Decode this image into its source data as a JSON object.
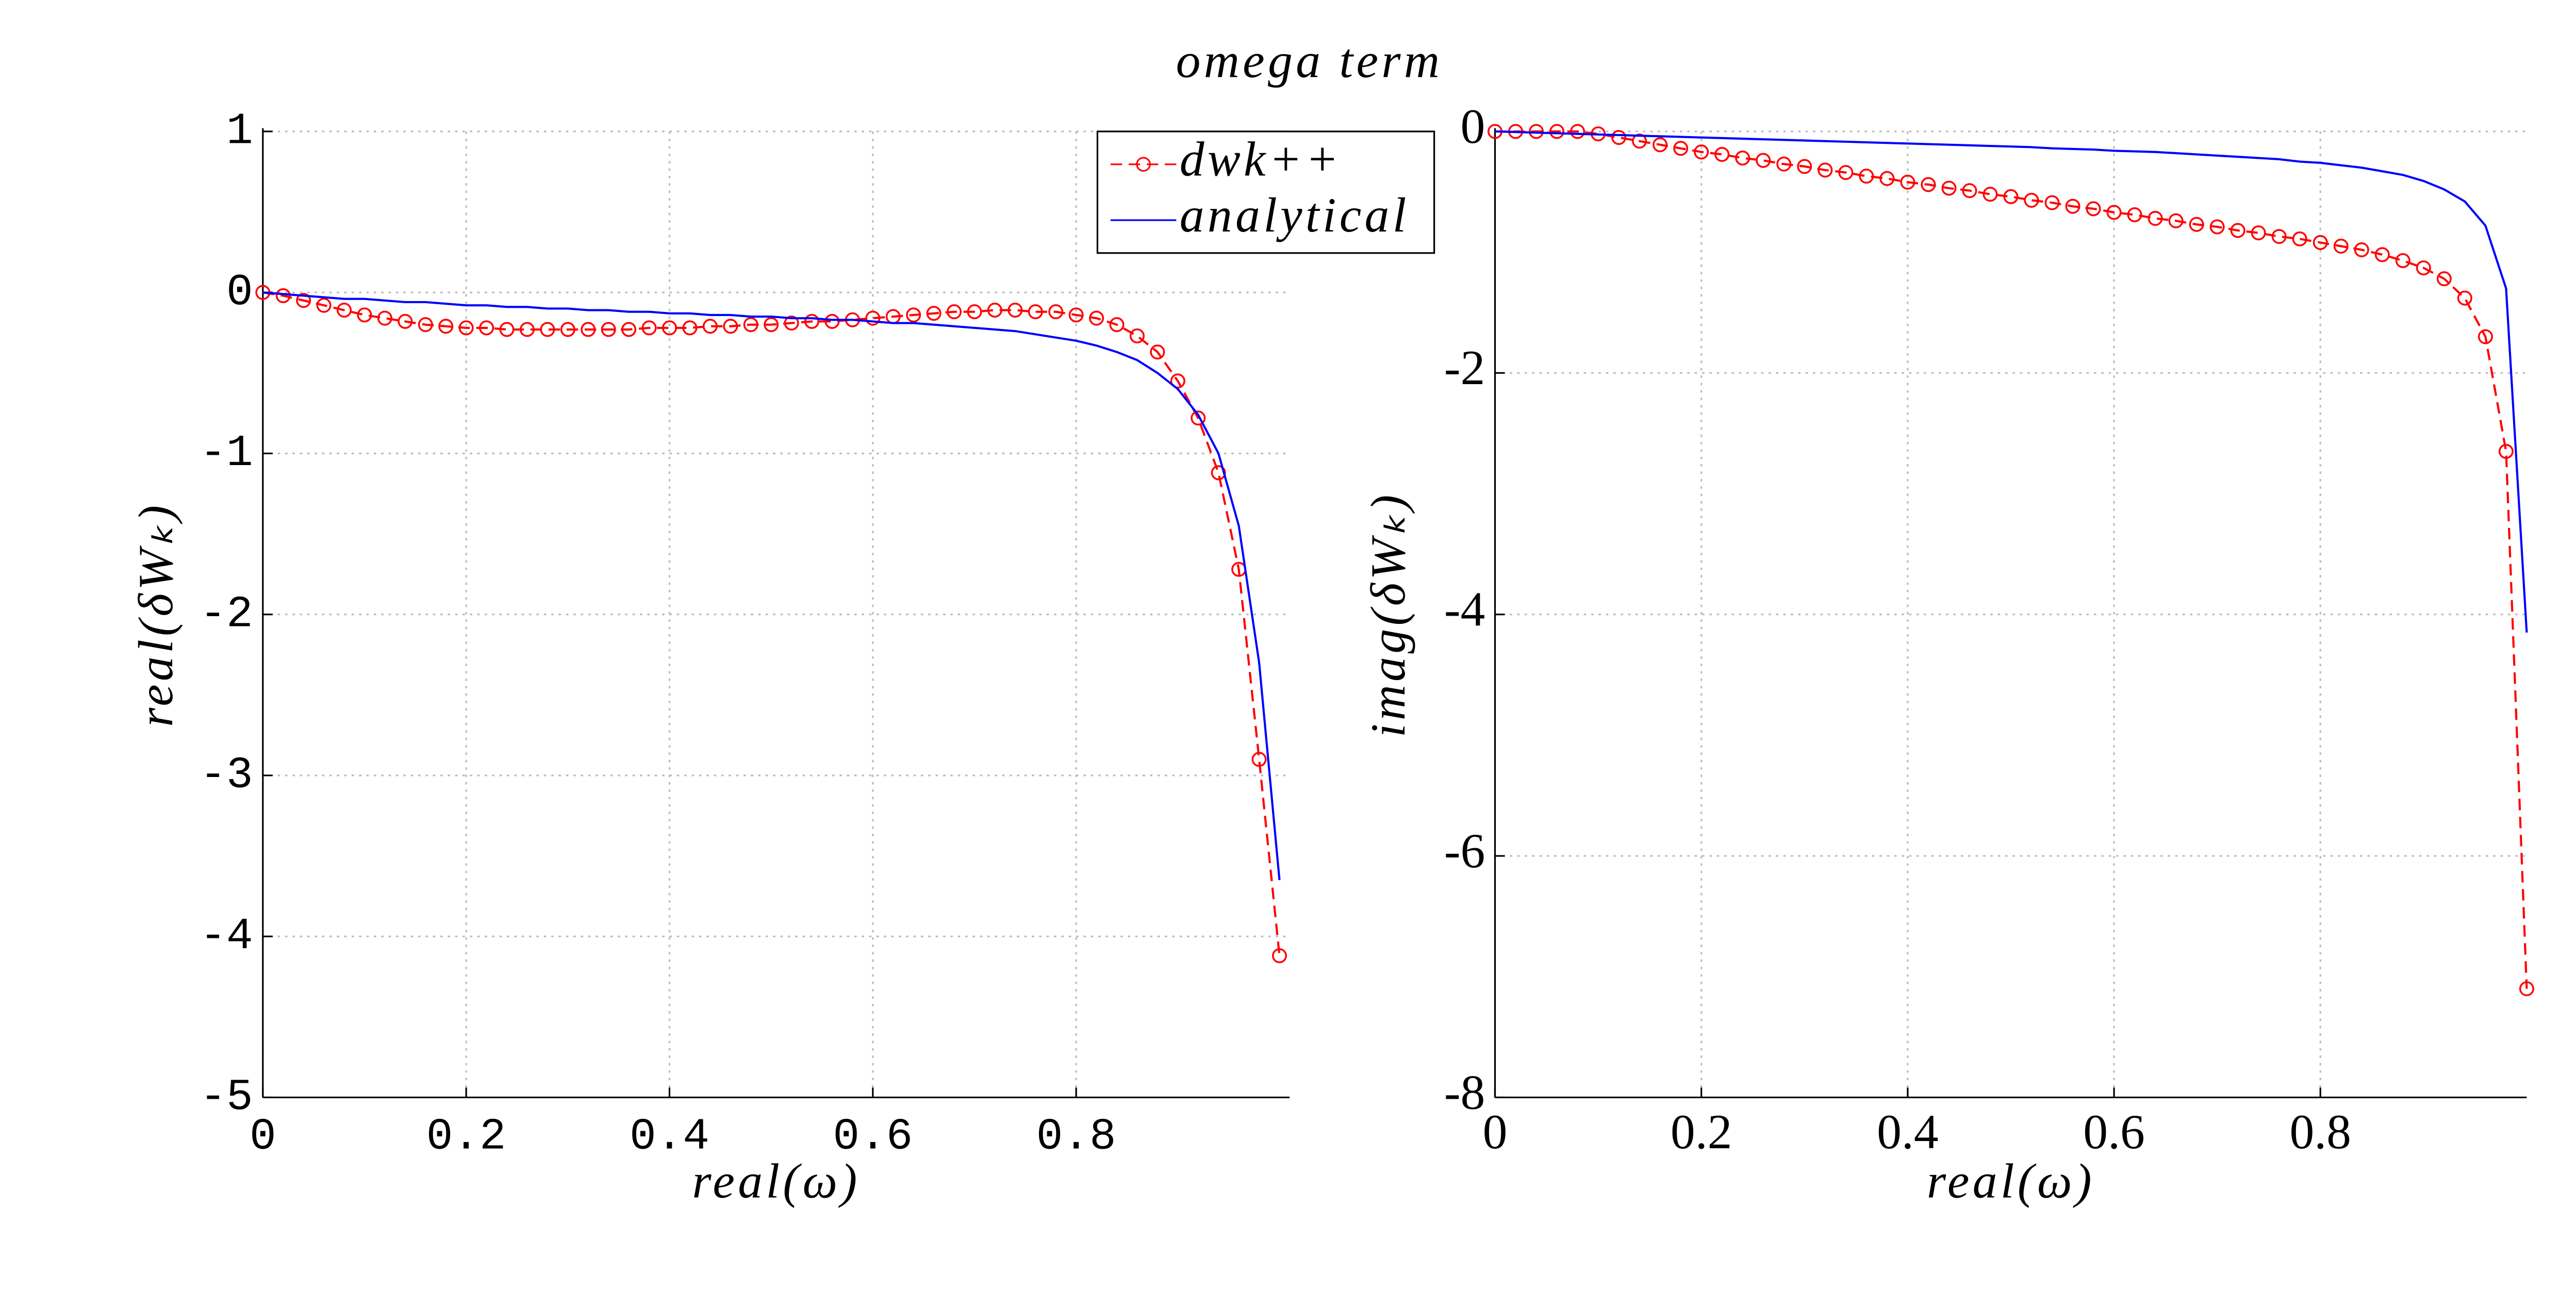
{
  "suptitle": "omega term",
  "chart_data": [
    {
      "type": "line",
      "x_label": "real(ω)",
      "y_label": "real(δWₖ)",
      "xlim": [
        0,
        1.01
      ],
      "xticks": [
        0,
        0.2,
        0.4,
        0.6,
        0.8
      ],
      "ylim": [
        -5,
        1
      ],
      "yticks": [
        -5,
        -4,
        -3,
        -2,
        -1,
        0,
        1
      ],
      "grid": true,
      "legend": "upper right",
      "x": [
        0,
        0.02,
        0.04,
        0.06,
        0.08,
        0.1,
        0.12,
        0.14,
        0.16,
        0.18,
        0.2,
        0.22,
        0.24,
        0.26,
        0.28,
        0.3,
        0.32,
        0.34,
        0.36,
        0.38,
        0.4,
        0.42,
        0.44,
        0.46,
        0.48,
        0.5,
        0.52,
        0.54,
        0.56,
        0.58,
        0.6,
        0.62,
        0.64,
        0.66,
        0.68,
        0.7,
        0.72,
        0.74,
        0.76,
        0.78,
        0.8,
        0.82,
        0.84,
        0.86,
        0.88,
        0.9,
        0.92,
        0.94,
        0.96,
        0.98,
        1.0
      ],
      "series": [
        {
          "name": "dwk++",
          "color": "#ff0000",
          "dashed": true,
          "marker": "circle",
          "values": [
            0,
            -0.02,
            -0.05,
            -0.08,
            -0.11,
            -0.14,
            -0.16,
            -0.18,
            -0.2,
            -0.21,
            -0.22,
            -0.22,
            -0.23,
            -0.23,
            -0.23,
            -0.23,
            -0.23,
            -0.23,
            -0.23,
            -0.22,
            -0.22,
            -0.22,
            -0.21,
            -0.21,
            -0.2,
            -0.2,
            -0.19,
            -0.18,
            -0.18,
            -0.17,
            -0.16,
            -0.15,
            -0.14,
            -0.13,
            -0.12,
            -0.12,
            -0.11,
            -0.11,
            -0.12,
            -0.12,
            -0.14,
            -0.16,
            -0.2,
            -0.27,
            -0.37,
            -0.55,
            -0.78,
            -1.12,
            -1.72,
            -2.9,
            -4.12
          ]
        },
        {
          "name": "analytical",
          "color": "#0000ff",
          "dashed": false,
          "values": [
            0,
            -0.01,
            -0.02,
            -0.03,
            -0.04,
            -0.04,
            -0.05,
            -0.06,
            -0.06,
            -0.07,
            -0.08,
            -0.08,
            -0.09,
            -0.09,
            -0.1,
            -0.1,
            -0.11,
            -0.11,
            -0.12,
            -0.12,
            -0.13,
            -0.13,
            -0.14,
            -0.14,
            -0.15,
            -0.15,
            -0.16,
            -0.16,
            -0.17,
            -0.17,
            -0.18,
            -0.19,
            -0.19,
            -0.2,
            -0.21,
            -0.22,
            -0.23,
            -0.24,
            -0.26,
            -0.28,
            -0.3,
            -0.33,
            -0.37,
            -0.42,
            -0.5,
            -0.6,
            -0.76,
            -1.0,
            -1.45,
            -2.3,
            -3.65
          ]
        }
      ]
    },
    {
      "type": "line",
      "x_label": "real(ω)",
      "y_label": "imag(δWₖ)",
      "xlim": [
        0,
        1.0
      ],
      "xticks": [
        0,
        0.2,
        0.4,
        0.6,
        0.8
      ],
      "ylim": [
        -8,
        0
      ],
      "yticks": [
        -8,
        -6,
        -4,
        -2,
        0
      ],
      "grid": true,
      "x": [
        0,
        0.02,
        0.04,
        0.06,
        0.08,
        0.1,
        0.12,
        0.14,
        0.16,
        0.18,
        0.2,
        0.22,
        0.24,
        0.26,
        0.28,
        0.3,
        0.32,
        0.34,
        0.36,
        0.38,
        0.4,
        0.42,
        0.44,
        0.46,
        0.48,
        0.5,
        0.52,
        0.54,
        0.56,
        0.58,
        0.6,
        0.62,
        0.64,
        0.66,
        0.68,
        0.7,
        0.72,
        0.74,
        0.76,
        0.78,
        0.8,
        0.82,
        0.84,
        0.86,
        0.88,
        0.9,
        0.92,
        0.94,
        0.96,
        0.98,
        1.0
      ],
      "series": [
        {
          "name": "dwk++",
          "color": "#ff0000",
          "dashed": true,
          "marker": "circle",
          "values": [
            0,
            0,
            0,
            0,
            0,
            -0.02,
            -0.05,
            -0.08,
            -0.11,
            -0.14,
            -0.17,
            -0.19,
            -0.22,
            -0.24,
            -0.27,
            -0.29,
            -0.32,
            -0.34,
            -0.37,
            -0.39,
            -0.42,
            -0.44,
            -0.47,
            -0.49,
            -0.52,
            -0.54,
            -0.57,
            -0.59,
            -0.62,
            -0.64,
            -0.67,
            -0.69,
            -0.72,
            -0.74,
            -0.77,
            -0.79,
            -0.82,
            -0.84,
            -0.87,
            -0.89,
            -0.92,
            -0.95,
            -0.98,
            -1.02,
            -1.07,
            -1.13,
            -1.22,
            -1.38,
            -1.7,
            -2.65,
            -7.1
          ]
        },
        {
          "name": "analytical",
          "color": "#0000ff",
          "dashed": false,
          "values": [
            0,
            -0.005,
            -0.01,
            -0.015,
            -0.02,
            -0.025,
            -0.03,
            -0.035,
            -0.04,
            -0.045,
            -0.05,
            -0.055,
            -0.06,
            -0.065,
            -0.07,
            -0.075,
            -0.08,
            -0.085,
            -0.09,
            -0.095,
            -0.1,
            -0.105,
            -0.11,
            -0.115,
            -0.12,
            -0.125,
            -0.13,
            -0.14,
            -0.145,
            -0.15,
            -0.16,
            -0.165,
            -0.17,
            -0.18,
            -0.19,
            -0.2,
            -0.21,
            -0.22,
            -0.23,
            -0.25,
            -0.26,
            -0.28,
            -0.3,
            -0.33,
            -0.36,
            -0.41,
            -0.48,
            -0.58,
            -0.78,
            -1.3,
            -4.15
          ]
        }
      ]
    }
  ]
}
